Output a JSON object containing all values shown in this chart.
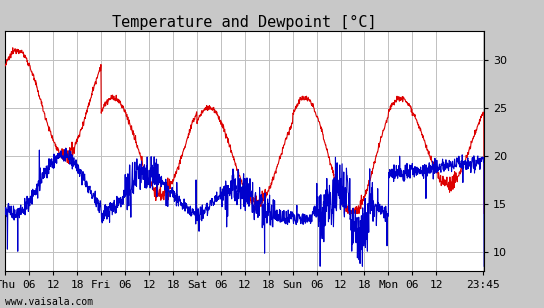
{
  "title": "Temperature and Dewpoint [°C]",
  "temp_color": "#dd0000",
  "dew_color": "#0000cc",
  "ylim": [
    8,
    33
  ],
  "yticks": [
    10,
    15,
    20,
    25,
    30
  ],
  "xlabel_ticks": [
    "Thu",
    "06",
    "12",
    "18",
    "Fri",
    "06",
    "12",
    "18",
    "Sat",
    "06",
    "12",
    "18",
    "Sun",
    "06",
    "12",
    "18",
    "Mon",
    "06",
    "12",
    "23:45"
  ],
  "plot_bg": "#ffffff",
  "fig_bg": "#c8c8c8",
  "grid_color": "#c0c0c0",
  "watermark": "www.vaisala.com",
  "title_fontsize": 11,
  "tick_fontsize": 8,
  "linewidth": 0.8
}
